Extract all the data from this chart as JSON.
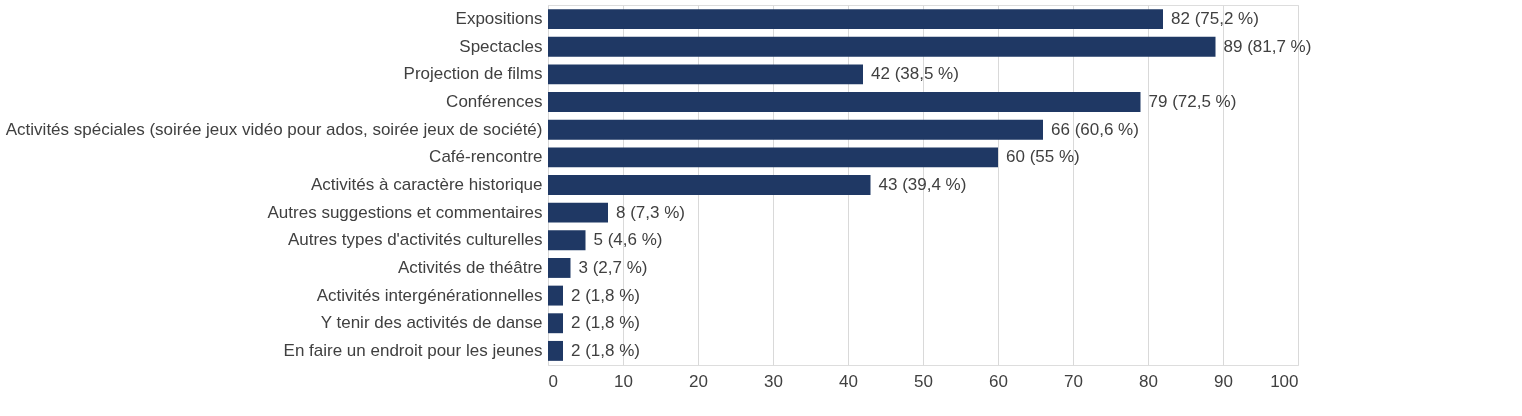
{
  "chart_data": {
    "type": "bar",
    "orientation": "horizontal",
    "categories": [
      "Expositions",
      "Spectacles",
      "Projection de films",
      "Conférences",
      "Activités spéciales (soirée jeux vidéo pour ados, soirée jeux de société)",
      "Café-rencontre",
      "Activités à caractère historique",
      "Autres suggestions et commentaires",
      "Autres types d'activités culturelles",
      "Activités de théâtre",
      "Activités intergénérationnelles",
      "Y tenir des activités de danse",
      "En faire un endroit pour les jeunes"
    ],
    "values": [
      82,
      89,
      42,
      79,
      66,
      60,
      43,
      8,
      5,
      3,
      2,
      2,
      2
    ],
    "value_labels": [
      "82 (75,2 %)",
      "89 (81,7 %)",
      "42 (38,5 %)",
      "79 (72,5 %)",
      "66 (60,6 %)",
      "60 (55 %)",
      "43 (39,4 %)",
      "8 (7,3 %)",
      "5 (4,6 %)",
      "3 (2,7 %)",
      "2 (1,8 %)",
      "2 (1,8 %)",
      "2 (1,8 %)"
    ],
    "color": "#1f3864",
    "xlim": [
      0,
      100
    ],
    "xticks": [
      0,
      10,
      20,
      30,
      40,
      50,
      60,
      70,
      80,
      90,
      100
    ],
    "grid": "x"
  }
}
